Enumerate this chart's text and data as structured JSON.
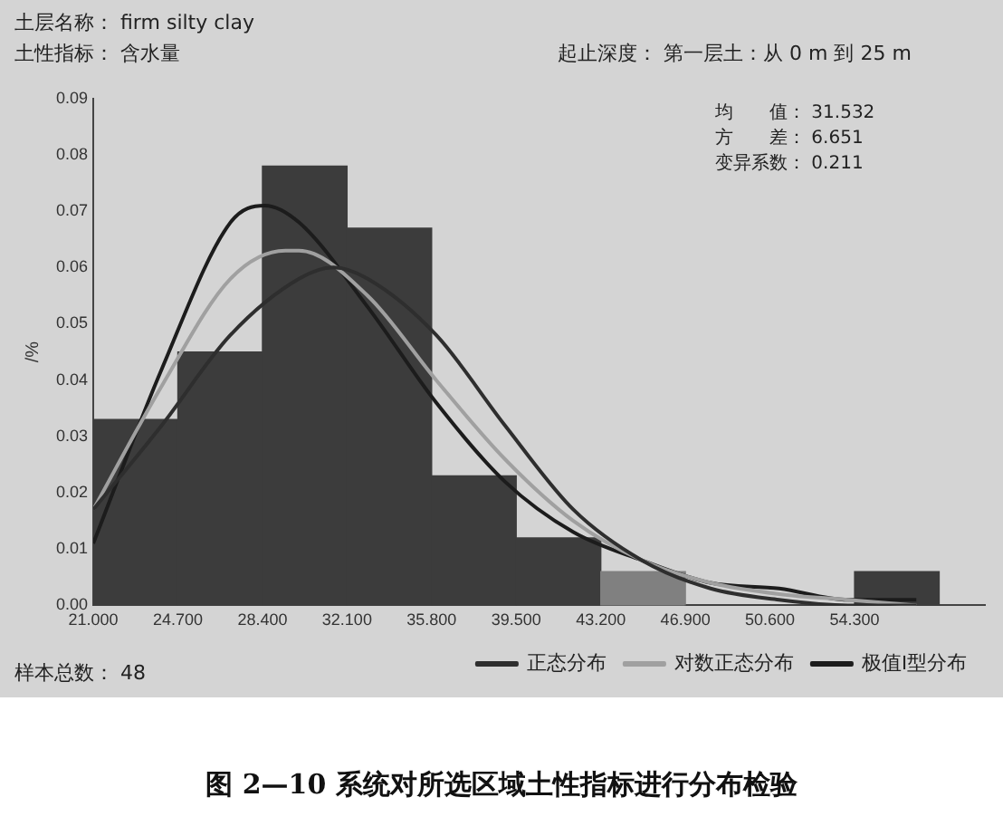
{
  "chart_data": {
    "type": "histogram",
    "title": "图 2—10 系统对所选区域土性指标进行分布检验",
    "ylabel": "/%",
    "annotations": [
      "土层名称： firm silty clay",
      "土性指标： 含水量",
      "起止深度： 第一层土：从 0 m 到 25 m",
      "均　　值： 31.532",
      "方　　差： 6.651",
      "变异系数： 0.211",
      "样本总数： 48"
    ],
    "bins": [
      21,
      24.7,
      28.4,
      32.1,
      35.8,
      39.5,
      43.2,
      46.9,
      50.6,
      54.3,
      58
    ],
    "xlim": [
      21,
      60
    ],
    "xticks": [
      {
        "value": 21,
        "label": "21.000"
      },
      {
        "value": 24.7,
        "label": "24.700"
      },
      {
        "value": 28.4,
        "label": "28.400"
      },
      {
        "value": 32.1,
        "label": "32.100"
      },
      {
        "value": 35.8,
        "label": "35.800"
      },
      {
        "value": 39.5,
        "label": "39.500"
      },
      {
        "value": 43.2,
        "label": "43.200"
      },
      {
        "value": 46.9,
        "label": "46.900"
      },
      {
        "value": 50.6,
        "label": "50.600"
      },
      {
        "value": 54.3,
        "label": "54.300"
      }
    ],
    "ylim": [
      0,
      0.09
    ],
    "yticks": [
      {
        "value": 0,
        "label": "0.00"
      },
      0.01,
      0.02,
      0.03,
      0.04,
      0.05,
      0.06,
      0.07,
      0.08,
      0.09
    ],
    "grid": false,
    "legend": "bottom",
    "marker": "none",
    "line_style": "solid",
    "series": [
      {
        "values": [
          0.033,
          0.045,
          0.078,
          0.067,
          0.023,
          0.012,
          0.006,
          0,
          0,
          0.006
        ],
        "colors": [
          "#3c3c3c",
          "#3c3c3c",
          "#3c3c3c",
          "#3c3c3c",
          "#3c3c3c",
          "#3c3c3c",
          "#808080",
          "#3c3c3c",
          "#3c3c3c",
          "#3c3c3c"
        ]
      },
      {
        "type": "line",
        "name": "正态分布",
        "color": "#2e2e2e",
        "x": [
          21,
          24,
          27,
          30,
          31.5,
          33,
          36,
          39,
          42,
          45,
          48,
          51,
          54,
          57
        ],
        "values": [
          0.017,
          0.032,
          0.048,
          0.058,
          0.06,
          0.058,
          0.048,
          0.032,
          0.017,
          0.008,
          0.003,
          0.001,
          0,
          0
        ]
      },
      {
        "type": "line",
        "name": "对数正态分布",
        "color": "#a0a0a0",
        "x": [
          21,
          24,
          27,
          29.4,
          30,
          33,
          36,
          39,
          42,
          45,
          48,
          51,
          54,
          57
        ],
        "values": [
          0.017,
          0.039,
          0.058,
          0.063,
          0.063,
          0.055,
          0.04,
          0.026,
          0.015,
          0.008,
          0.004,
          0.002,
          0.001,
          0
        ]
      },
      {
        "type": "line",
        "name": "极值I型分布",
        "color": "#1c1c1c",
        "x": [
          21,
          24,
          27,
          28.5,
          30,
          33,
          36,
          39,
          42,
          45,
          48,
          51,
          54,
          57
        ],
        "values": [
          0.011,
          0.042,
          0.068,
          0.071,
          0.068,
          0.053,
          0.036,
          0.022,
          0.013,
          0.008,
          0.004,
          0.003,
          0.001,
          0.001
        ]
      }
    ]
  }
}
